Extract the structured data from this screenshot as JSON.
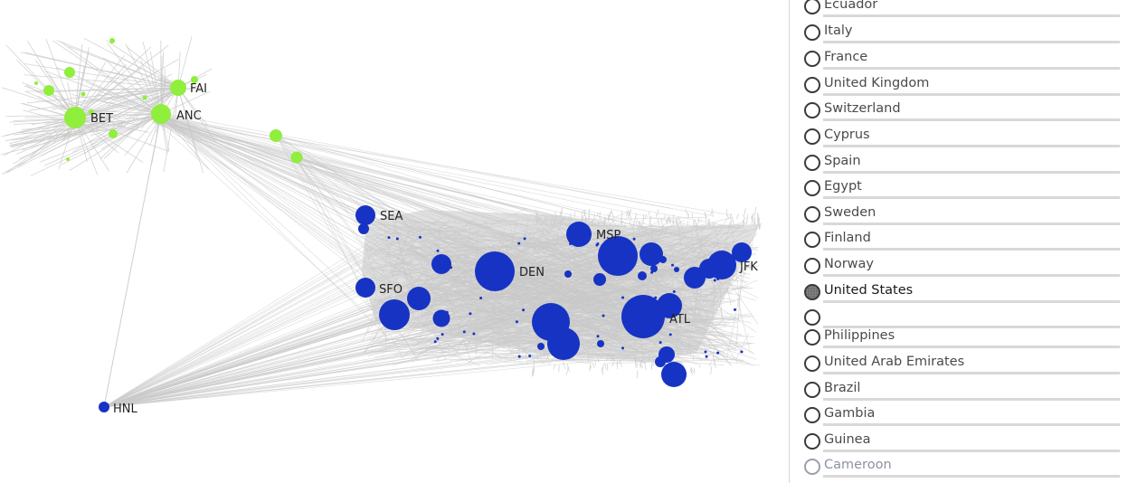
{
  "graph": {
    "colors": {
      "edge": "#c9c9c9",
      "alaska_node": "#90ee3c",
      "us_node": "#1733c4",
      "label": "#222222"
    },
    "labels": {
      "fai": "FAI",
      "anc": "ANC",
      "bet": "BET",
      "sea": "SEA",
      "sfo": "SFO",
      "den": "DEN",
      "msp": "MSP",
      "jfk": "JFK",
      "atl": "ATL",
      "hnl": "HNL"
    }
  },
  "country_list": {
    "items": [
      {
        "label": "Ecuador",
        "selected": false,
        "faded": false
      },
      {
        "label": "Italy",
        "selected": false,
        "faded": false
      },
      {
        "label": "France",
        "selected": false,
        "faded": false
      },
      {
        "label": "United Kingdom",
        "selected": false,
        "faded": false
      },
      {
        "label": "Switzerland",
        "selected": false,
        "faded": false
      },
      {
        "label": "Cyprus",
        "selected": false,
        "faded": false
      },
      {
        "label": "Spain",
        "selected": false,
        "faded": false
      },
      {
        "label": "Egypt",
        "selected": false,
        "faded": false
      },
      {
        "label": "Sweden",
        "selected": false,
        "faded": false
      },
      {
        "label": "Finland",
        "selected": false,
        "faded": false
      },
      {
        "label": "Norway",
        "selected": false,
        "faded": false
      },
      {
        "label": "United States",
        "selected": true,
        "faded": false
      },
      {
        "label": "",
        "selected": false,
        "faded": false
      },
      {
        "label": "Philippines",
        "selected": false,
        "faded": false
      },
      {
        "label": "United Arab Emirates",
        "selected": false,
        "faded": false
      },
      {
        "label": "Brazil",
        "selected": false,
        "faded": false
      },
      {
        "label": "Gambia",
        "selected": false,
        "faded": false
      },
      {
        "label": "Guinea",
        "selected": false,
        "faded": false
      },
      {
        "label": "Cameroon",
        "selected": false,
        "faded": true
      }
    ]
  }
}
